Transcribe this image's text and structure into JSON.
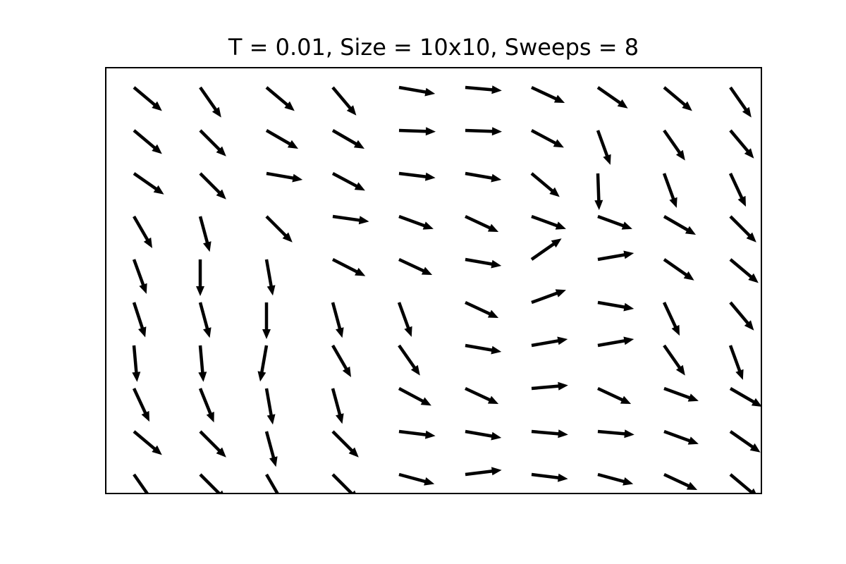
{
  "chart_data": {
    "type": "quiver",
    "title": "T = 0.01, Size = 10x10, Sweeps = 8",
    "xlabel": "",
    "ylabel": "",
    "grid": false,
    "grid_size": [
      10,
      10
    ],
    "xlim": [
      -0.5,
      9.5
    ],
    "ylim": [
      9.5,
      0
    ],
    "rows": [
      [
        -40,
        -55,
        -40,
        -50,
        -10,
        -5,
        -25,
        -35,
        -40,
        -55
      ],
      [
        -40,
        -45,
        -30,
        -30,
        -2,
        -2,
        -28,
        -70,
        -55,
        -50
      ],
      [
        -35,
        -45,
        -10,
        -28,
        -7,
        -10,
        -40,
        -88,
        -70,
        -65
      ],
      [
        -60,
        -75,
        -45,
        -8,
        -20,
        -25,
        -20,
        -20,
        -30,
        -45
      ],
      [
        -70,
        -90,
        -80,
        -27,
        -25,
        -10,
        35,
        10,
        -35,
        -40
      ],
      [
        -72,
        -75,
        -90,
        -75,
        -70,
        -25,
        20,
        -10,
        -65,
        -50
      ],
      [
        -85,
        -85,
        -100,
        -60,
        -55,
        -10,
        10,
        10,
        -55,
        -70
      ],
      [
        -65,
        -68,
        -80,
        -75,
        -28,
        -25,
        5,
        -25,
        -20,
        -30
      ],
      [
        -40,
        -45,
        -75,
        -45,
        -7,
        -10,
        -5,
        -5,
        -20,
        -35
      ],
      [
        -55,
        -45,
        -60,
        -45,
        -15,
        7,
        -7,
        -15,
        -25,
        -40
      ]
    ]
  }
}
